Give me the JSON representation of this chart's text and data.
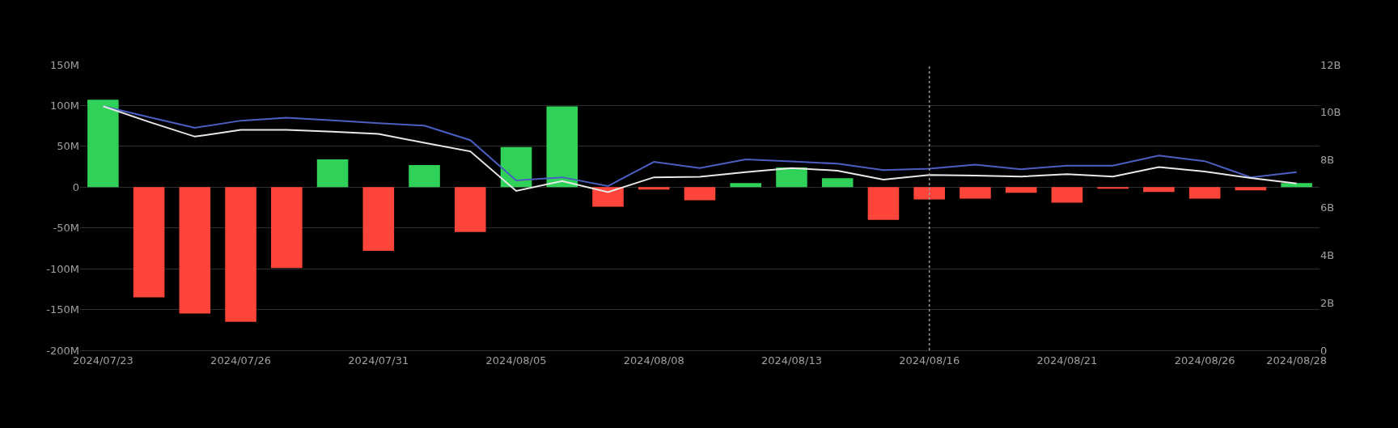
{
  "chart_data": {
    "type": "bar",
    "categories": [
      "2024/07/23",
      null,
      null,
      "2024/07/26",
      null,
      null,
      "2024/07/31",
      null,
      null,
      "2024/08/05",
      null,
      null,
      "2024/08/08",
      null,
      null,
      "2024/08/13",
      null,
      null,
      "2024/08/16",
      null,
      null,
      "2024/08/21",
      null,
      null,
      "2024/08/26",
      null,
      "2024/08/28"
    ],
    "series": [
      {
        "values": [
          107,
          -135,
          -155,
          -165,
          -99,
          34,
          -78,
          27,
          -55,
          49,
          99,
          -24,
          -3,
          -16,
          5,
          24,
          11,
          -40,
          -15,
          -14,
          -7,
          -19,
          -2,
          -6,
          -14,
          -4,
          5
        ],
        "colors": [
          "#2fd158",
          "#ff453a",
          "#ff453a",
          "#ff453a",
          "#ff453a",
          "#2fd158",
          "#ff453a",
          "#2fd158",
          "#ff453a",
          "#2fd158",
          "#2fd158",
          "#ff453a",
          "#ff453a",
          "#ff453a",
          "#2fd158",
          "#2fd158",
          "#2fd158",
          "#ff453a",
          "#ff453a",
          "#ff453a",
          "#ff453a",
          "#ff453a",
          "#ff453a",
          "#ff453a",
          "#ff453a",
          "#ff453a",
          "#2fd158"
        ]
      },
      {
        "type": "line",
        "axis": "y2",
        "color": "#4a5fc1",
        "values": [
          10.26,
          9.8,
          9.35,
          9.65,
          9.77,
          9.66,
          9.54,
          9.44,
          8.83,
          7.14,
          7.27,
          6.9,
          7.92,
          7.66,
          8.02,
          7.94,
          7.84,
          7.57,
          7.63,
          7.8,
          7.61,
          7.76,
          7.76,
          8.18,
          7.95,
          7.27,
          7.49
        ]
      },
      {
        "type": "line",
        "axis": "y2",
        "color": "#e8e8e8",
        "values": [
          10.26,
          9.6,
          8.98,
          9.26,
          9.26,
          9.19,
          9.09,
          8.72,
          8.36,
          6.7,
          7.11,
          6.65,
          7.27,
          7.29,
          7.49,
          7.66,
          7.55,
          7.17,
          7.37,
          7.34,
          7.3,
          7.4,
          7.3,
          7.7,
          7.51,
          7.24,
          7.01
        ]
      }
    ],
    "ylim": [
      -200,
      150
    ],
    "yticks": [
      {
        "value": -200,
        "label": "-200M"
      },
      {
        "value": -150,
        "label": "-150M"
      },
      {
        "value": -100,
        "label": "-100M"
      },
      {
        "value": -50,
        "label": "-50M"
      },
      0,
      {
        "value": 50,
        "label": "50M"
      },
      {
        "value": 100,
        "label": "100M"
      },
      {
        "value": 150,
        "label": "150M"
      }
    ],
    "y2lim": [
      0,
      12
    ],
    "y2ticks": [
      0,
      {
        "value": 2,
        "label": "2B"
      },
      {
        "value": 4,
        "label": "4B"
      },
      {
        "value": 6,
        "label": "6B"
      },
      {
        "value": 8,
        "label": "8B"
      },
      {
        "value": 10,
        "label": "10B"
      },
      {
        "value": 12,
        "label": "12B"
      }
    ],
    "ref_lines": [
      {
        "axis": "x",
        "value": "2024/08/16",
        "color": "#9a9a9a",
        "line_style": "dotted"
      }
    ],
    "grid": "y",
    "marker": "none",
    "line_style": "solid"
  }
}
